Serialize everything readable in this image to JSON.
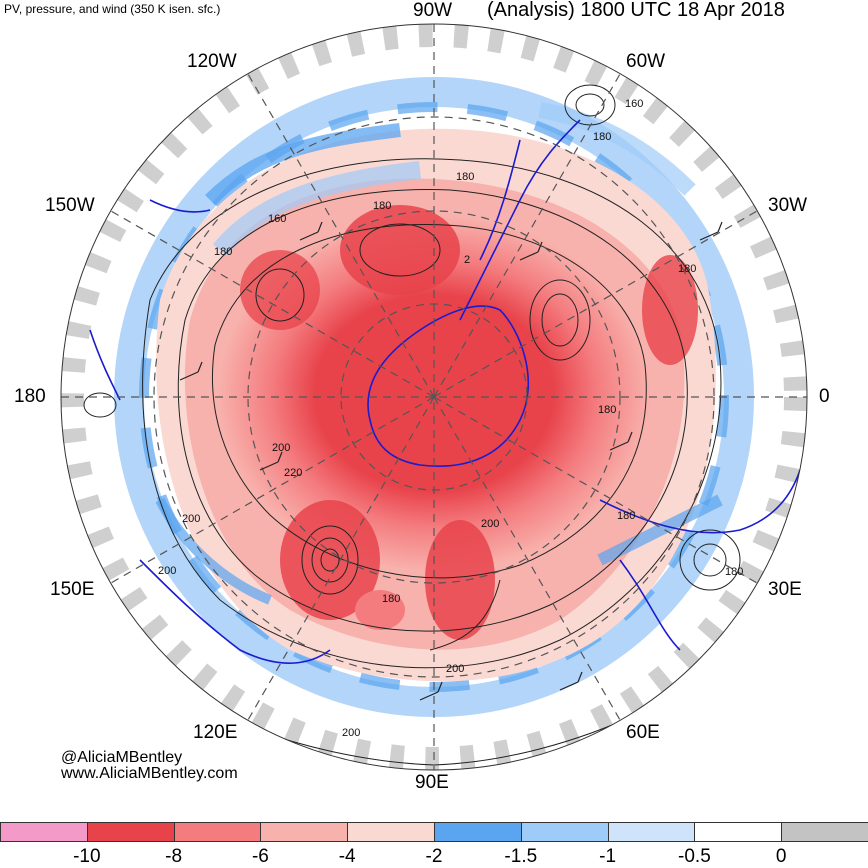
{
  "header": {
    "title_left": "PV, pressure, and wind (350 K isen. sfc.)",
    "title_right": "(Analysis) 1800 UTC 18 Apr 2018"
  },
  "longitude_labels": {
    "n90w": "90W",
    "n120w": "120W",
    "n60w": "60W",
    "n150w": "150W",
    "n30w": "30W",
    "n180": "180",
    "n0": "0",
    "n150e": "150E",
    "n30e": "30E",
    "n120e": "120E",
    "n60e": "60E",
    "n90e": "90E"
  },
  "contour_labels": [
    "160",
    "180",
    "180",
    "160",
    "180",
    "180",
    "180",
    "180",
    "200",
    "220",
    "200",
    "200",
    "180",
    "200",
    "180",
    "180",
    "200",
    "200",
    "2"
  ],
  "credit": {
    "handle": "@AliciaMBentley",
    "site": "www.AliciaMBentley.com"
  },
  "colorbar": {
    "colors": [
      "#f49ac8",
      "#e8434b",
      "#f47c7f",
      "#f8b2ad",
      "#fbd9d3",
      "#5aa4f0",
      "#9fcbf8",
      "#cfe3fb",
      "#ffffff",
      "#c3c3c3"
    ],
    "ticks": [
      "-10",
      "-8",
      "-6",
      "-4",
      "-2",
      "-1.5",
      "-1",
      "-0.5",
      "0"
    ]
  }
}
